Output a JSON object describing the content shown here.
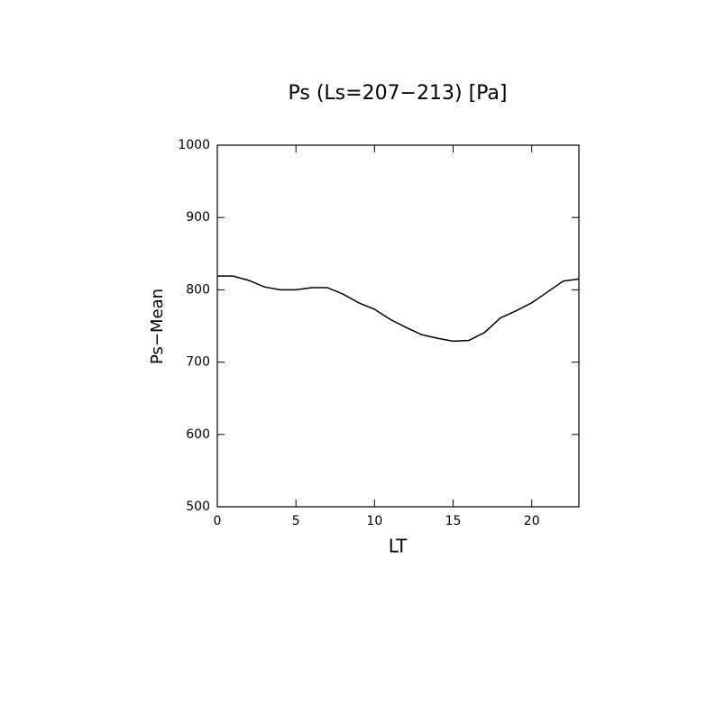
{
  "chart_data": {
    "type": "line",
    "title": "Ps (Ls=207−213) [Pa]",
    "x_label": "LT",
    "y_label": "Ps−Mean",
    "x": [
      0,
      1,
      2,
      3,
      4,
      5,
      6,
      7,
      8,
      9,
      10,
      11,
      12,
      13,
      14,
      15,
      16,
      17,
      18,
      19,
      20,
      21,
      22,
      23
    ],
    "series": [
      {
        "name": "Ps-Mean",
        "color": "#000000",
        "values": [
          819,
          819,
          813,
          804,
          800,
          800,
          803,
          803,
          794,
          782,
          773,
          759,
          748,
          738,
          733,
          729,
          730,
          741,
          761,
          771,
          782,
          797,
          812,
          815
        ]
      }
    ],
    "xlim": [
      0,
      23
    ],
    "xticks": [
      0,
      5,
      10,
      15,
      20
    ],
    "ylim": [
      500,
      1000
    ],
    "yticks": [
      500,
      600,
      700,
      800,
      900,
      1000
    ],
    "grid": false
  }
}
